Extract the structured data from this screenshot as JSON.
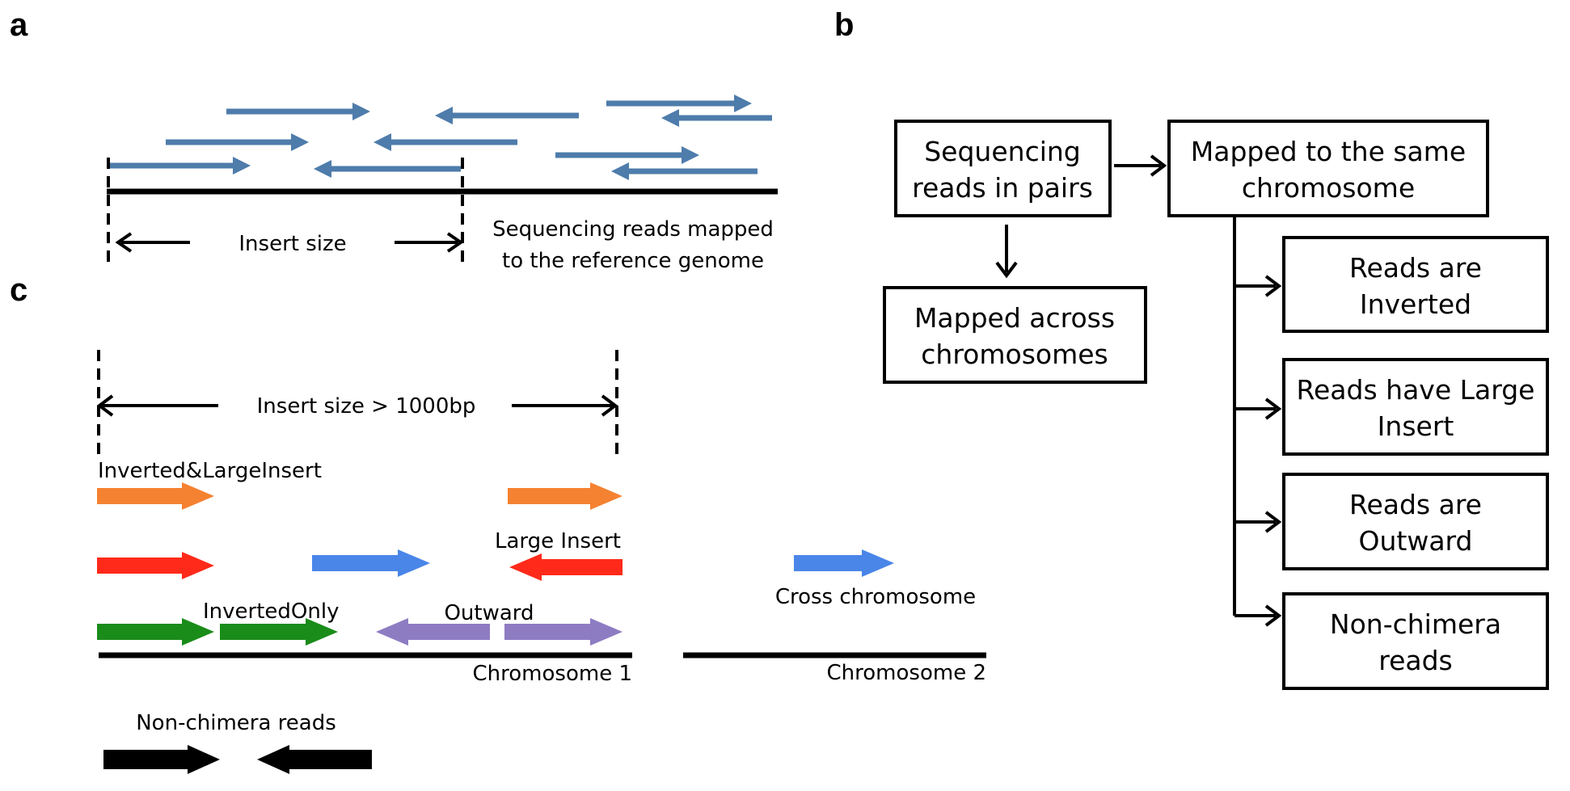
{
  "panels": {
    "a": {
      "letter": "a",
      "insert_label": "Insert size",
      "caption_line1": "Sequencing reads mapped",
      "caption_line2": "to the reference genome",
      "read_color": "#4e7cab"
    },
    "b": {
      "letter": "b",
      "box_pairs": [
        "Sequencing",
        "reads in pairs"
      ],
      "box_same": [
        "Mapped to the same",
        "chromosome"
      ],
      "box_across": [
        "Mapped  across",
        "chromosomes"
      ],
      "box_inverted": [
        "Reads are",
        "Inverted"
      ],
      "box_large": [
        "Reads have Large",
        "Insert"
      ],
      "box_outward": [
        "Reads are",
        "Outward"
      ],
      "box_nonchimera": [
        "Non-chimera",
        "reads"
      ]
    },
    "c": {
      "letter": "c",
      "insert_label": "Insert size > 1000bp",
      "inverted_large_label": "Inverted&LargeInsert",
      "large_insert_label": "Large Insert",
      "inverted_only_label": "InvertedOnly",
      "outward_label": "Outward",
      "cross_label": "Cross chromosome",
      "chrom1_label": "Chromosome 1",
      "chrom2_label": "Chromosome 2",
      "nonchimera_label": "Non-chimera reads",
      "colors": {
        "orange": "#f58231",
        "red": "#ff2a1a",
        "blue": "#4a86e8",
        "green": "#1a8c1a",
        "purple": "#8e7cc3",
        "black": "#000000"
      }
    }
  }
}
